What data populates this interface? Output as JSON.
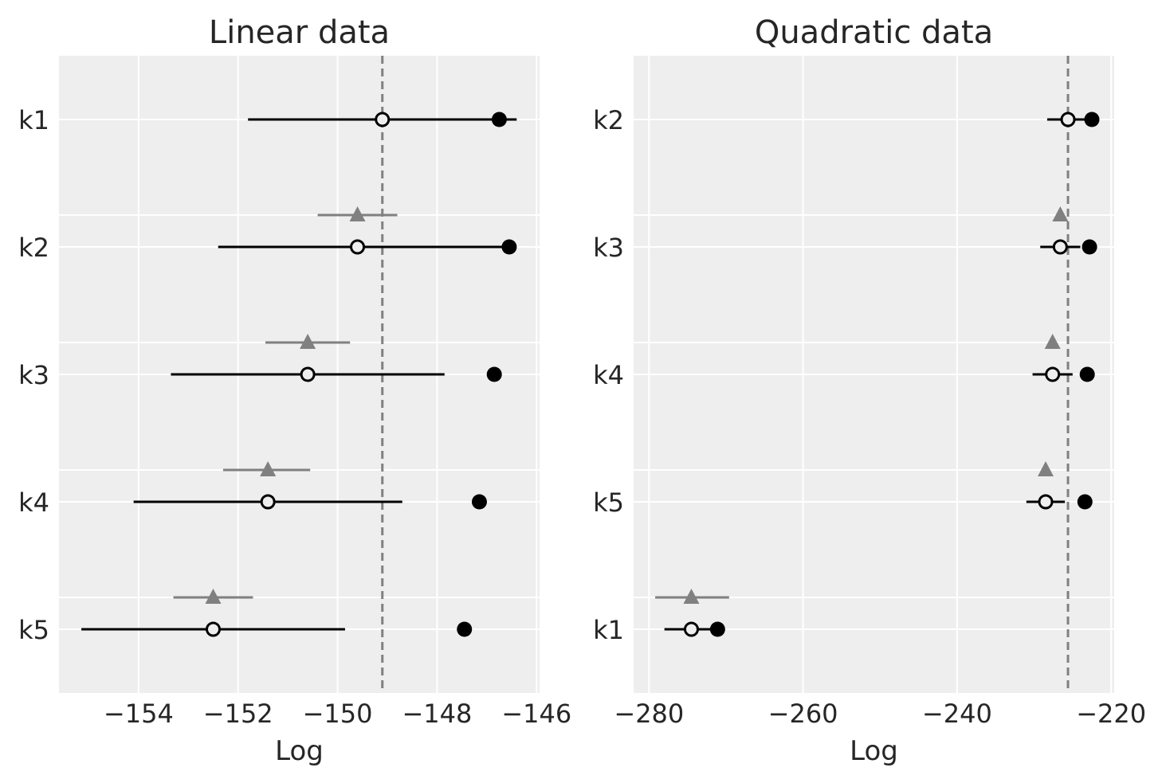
{
  "chart_data": [
    {
      "type": "scatter",
      "title": "Linear data",
      "xlabel": "Log",
      "ylabel": "",
      "xlim": [
        -155.6,
        -145.94
      ],
      "xticks": [
        -154,
        -152,
        -150,
        -148,
        -146
      ],
      "xtick_labels": [
        "−154",
        "−152",
        "−150",
        "−148",
        "−146"
      ],
      "reference_line": -149.1,
      "grid": true,
      "rows": [
        {
          "label": "k1",
          "in_sample": -146.75,
          "elpd": -149.1,
          "elpd_interval": [
            -151.8,
            -146.4
          ],
          "dse": null,
          "dse_interval": null
        },
        {
          "label": "k2",
          "in_sample": -146.55,
          "elpd": -149.6,
          "elpd_interval": [
            -152.4,
            -146.6
          ],
          "dse": -149.6,
          "dse_interval": [
            -150.4,
            -148.8
          ]
        },
        {
          "label": "k3",
          "in_sample": -146.85,
          "elpd": -150.6,
          "elpd_interval": [
            -153.35,
            -147.85
          ],
          "dse": -150.6,
          "dse_interval": [
            -151.45,
            -149.75
          ]
        },
        {
          "label": "k4",
          "in_sample": -147.15,
          "elpd": -151.4,
          "elpd_interval": [
            -154.1,
            -148.7
          ],
          "dse": -151.4,
          "dse_interval": [
            -152.3,
            -150.55
          ]
        },
        {
          "label": "k5",
          "in_sample": -147.45,
          "elpd": -152.5,
          "elpd_interval": [
            -155.15,
            -149.85
          ],
          "dse": -152.5,
          "dse_interval": [
            -153.3,
            -151.7
          ]
        }
      ]
    },
    {
      "type": "scatter",
      "title": "Quadratic data",
      "xlabel": "Log",
      "ylabel": "",
      "xlim": [
        -282.0,
        -219.6
      ],
      "xticks": [
        -280,
        -260,
        -240,
        -220
      ],
      "xtick_labels": [
        "−280",
        "−260",
        "−240",
        "−220"
      ],
      "reference_line": -225.6,
      "grid": true,
      "rows": [
        {
          "label": "k2",
          "in_sample": -222.5,
          "elpd": -225.6,
          "elpd_interval": [
            -228.3,
            -222.9
          ],
          "dse": null,
          "dse_interval": null
        },
        {
          "label": "k3",
          "in_sample": -222.8,
          "elpd": -226.6,
          "elpd_interval": [
            -229.2,
            -224.0
          ],
          "dse": -226.6,
          "dse_interval": [
            -227.1,
            -226.1
          ]
        },
        {
          "label": "k4",
          "in_sample": -223.1,
          "elpd": -227.6,
          "elpd_interval": [
            -230.2,
            -225.0
          ],
          "dse": -227.6,
          "dse_interval": [
            -228.1,
            -227.1
          ]
        },
        {
          "label": "k5",
          "in_sample": -223.4,
          "elpd": -228.5,
          "elpd_interval": [
            -231.0,
            -226.0
          ],
          "dse": -228.5,
          "dse_interval": [
            -229.0,
            -228.0
          ]
        },
        {
          "label": "k1",
          "in_sample": -271.1,
          "elpd": -274.5,
          "elpd_interval": [
            -278.0,
            -271.0
          ],
          "dse": -274.5,
          "dse_interval": [
            -279.2,
            -269.6
          ]
        }
      ]
    }
  ],
  "colors": {
    "background": "#eeeeee",
    "grid": "#ffffff",
    "elpd_marker": "#000000",
    "dse_marker": "#808080",
    "reference_line": "#808080"
  }
}
